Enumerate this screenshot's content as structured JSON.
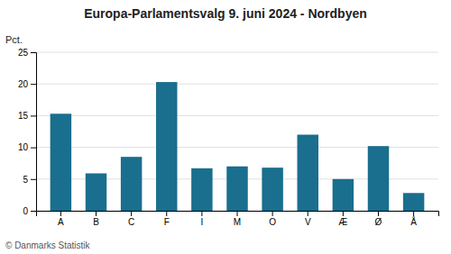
{
  "chart_data": {
    "type": "bar",
    "title": "Europa-Parlamentsvalg 9. juni 2024 - Nordbyen",
    "categories": [
      "A",
      "B",
      "C",
      "F",
      "I",
      "M",
      "O",
      "V",
      "Æ",
      "Ø",
      "Å"
    ],
    "values": [
      15.3,
      5.9,
      8.5,
      20.3,
      6.7,
      7.0,
      6.8,
      12.0,
      5.0,
      10.2,
      2.8
    ],
    "color": "#1a6e8e",
    "ylabel": "Pct.",
    "ylim": [
      0,
      25
    ],
    "yticks": [
      0,
      5,
      10,
      15,
      20,
      25
    ],
    "grid": true,
    "footer": "© Danmarks Statistik"
  }
}
